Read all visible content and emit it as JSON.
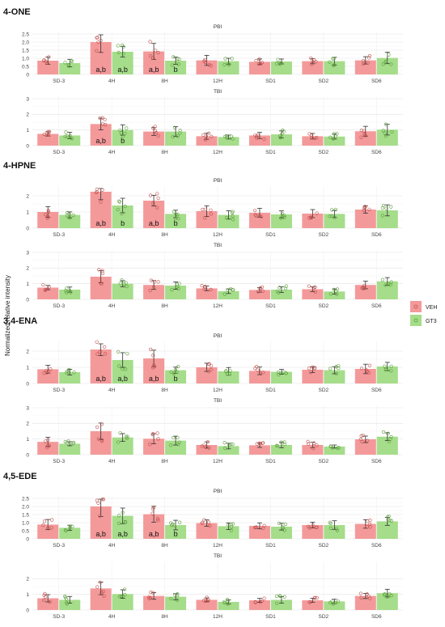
{
  "ylabel": "Normalized relative intensity",
  "legend": [
    {
      "name": "VEH",
      "color": "#f4999a"
    },
    {
      "name": "GT3",
      "color": "#a5dd8a"
    }
  ],
  "chart_data": {
    "type": "bar",
    "grid": true,
    "legend_position": "right",
    "categories": [
      "SD-3",
      "4H",
      "8H",
      "12H",
      "SD1",
      "SD2",
      "SD6"
    ],
    "series_names": [
      "VEH",
      "GT3"
    ],
    "groups": [
      {
        "title": "4-ONE",
        "panels": [
          {
            "title": "PBI",
            "ylim": [
              0,
              2.5
            ],
            "yticks": [
              "0",
              "0.5",
              "1.0",
              "1.5",
              "2.0",
              "2.5"
            ],
            "tick_values": [
              0,
              0.5,
              1.0,
              1.5,
              2.0,
              2.5
            ],
            "series": [
              {
                "name": "VEH",
                "values": [
                  0.85,
                  2.0,
                  1.42,
                  0.87,
                  0.78,
                  0.82,
                  0.87
                ]
              },
              {
                "name": "GT3",
                "values": [
                  0.7,
                  1.4,
                  0.85,
                  0.82,
                  0.8,
                  0.82,
                  1.02
                ]
              }
            ],
            "annotations": [
              {
                "category": "4H",
                "series": "VEH",
                "text": "a,b"
              },
              {
                "category": "4H",
                "series": "GT3",
                "text": "a,b"
              },
              {
                "category": "8H",
                "series": "VEH",
                "text": "a,b"
              },
              {
                "category": "8H",
                "series": "GT3",
                "text": "b"
              }
            ]
          },
          {
            "title": "TBI",
            "ylim": [
              0,
              3
            ],
            "yticks": [
              "0",
              "1",
              "2",
              "3"
            ],
            "tick_values": [
              0,
              1,
              2,
              3
            ],
            "series": [
              {
                "name": "VEH",
                "values": [
                  0.75,
                  1.38,
                  0.9,
                  0.6,
                  0.65,
                  0.6,
                  0.92
                ]
              },
              {
                "name": "GT3",
                "values": [
                  0.65,
                  1.0,
                  0.9,
                  0.55,
                  0.72,
                  0.58,
                  1.02
                ]
              }
            ],
            "annotations": [
              {
                "category": "4H",
                "series": "VEH",
                "text": "a,b"
              },
              {
                "category": "4H",
                "series": "GT3",
                "text": "b"
              }
            ]
          }
        ]
      },
      {
        "title": "4-HPNE",
        "panels": [
          {
            "title": "PBI",
            "ylim": [
              0,
              2.5
            ],
            "yticks": [
              "0",
              "1",
              "2"
            ],
            "tick_values": [
              0,
              1,
              2
            ],
            "series": [
              {
                "name": "VEH",
                "values": [
                  1.0,
                  2.25,
                  1.7,
                  1.05,
                  0.95,
                  0.9,
                  1.15
                ]
              },
              {
                "name": "GT3",
                "values": [
                  0.82,
                  1.4,
                  0.88,
                  0.82,
                  0.85,
                  0.88,
                  1.1
                ]
              }
            ],
            "annotations": [
              {
                "category": "4H",
                "series": "VEH",
                "text": "a,b"
              },
              {
                "category": "4H",
                "series": "GT3",
                "text": "b"
              },
              {
                "category": "8H",
                "series": "VEH",
                "text": "a,b"
              },
              {
                "category": "8H",
                "series": "GT3",
                "text": "b"
              }
            ]
          },
          {
            "title": "TBI",
            "ylim": [
              0,
              3
            ],
            "yticks": [
              "0",
              "1",
              "2",
              "3"
            ],
            "tick_values": [
              0,
              1,
              2,
              3
            ],
            "series": [
              {
                "name": "VEH",
                "values": [
                  0.75,
                  1.45,
                  0.92,
                  0.7,
                  0.6,
                  0.65,
                  0.92
                ]
              },
              {
                "name": "GT3",
                "values": [
                  0.62,
                  1.0,
                  0.88,
                  0.52,
                  0.62,
                  0.5,
                  1.15
                ]
              }
            ],
            "annotations": []
          }
        ]
      },
      {
        "title": "3,4-ENA",
        "panels": [
          {
            "title": "PBI",
            "ylim": [
              0,
              2.5
            ],
            "yticks": [
              "0",
              "1",
              "2"
            ],
            "tick_values": [
              0,
              1,
              2
            ],
            "series": [
              {
                "name": "VEH",
                "values": [
                  0.88,
                  2.1,
                  1.55,
                  1.0,
                  0.78,
                  0.85,
                  0.9
                ]
              },
              {
                "name": "GT3",
                "values": [
                  0.7,
                  1.45,
                  0.82,
                  0.75,
                  0.72,
                  0.82,
                  1.05
                ]
              }
            ],
            "annotations": [
              {
                "category": "4H",
                "series": "VEH",
                "text": "a,b"
              },
              {
                "category": "4H",
                "series": "GT3",
                "text": "a,b"
              },
              {
                "category": "8H",
                "series": "VEH",
                "text": "a,b"
              },
              {
                "category": "8H",
                "series": "GT3",
                "text": "b"
              }
            ]
          },
          {
            "title": "TBI",
            "ylim": [
              0,
              3
            ],
            "yticks": [
              "0",
              "1",
              "2",
              "3"
            ],
            "tick_values": [
              0,
              1,
              2,
              3
            ],
            "series": [
              {
                "name": "VEH",
                "values": [
                  0.82,
                  1.5,
                  1.02,
                  0.62,
                  0.6,
                  0.62,
                  0.98
                ]
              },
              {
                "name": "GT3",
                "values": [
                  0.7,
                  1.1,
                  0.9,
                  0.55,
                  0.62,
                  0.52,
                  1.15
                ]
              }
            ],
            "annotations": []
          }
        ]
      },
      {
        "title": "4,5-EDE",
        "panels": [
          {
            "title": "PBI",
            "ylim": [
              0,
              2.5
            ],
            "yticks": [
              "0",
              "0.5",
              "1.0",
              "1.5",
              "2.0",
              "2.5"
            ],
            "tick_values": [
              0,
              0.5,
              1.0,
              1.5,
              2.0,
              2.5
            ],
            "series": [
              {
                "name": "VEH",
                "values": [
                  0.88,
                  2.0,
                  1.52,
                  0.97,
                  0.8,
                  0.85,
                  0.92
                ]
              },
              {
                "name": "GT3",
                "values": [
                  0.68,
                  1.42,
                  0.85,
                  0.78,
                  0.75,
                  0.85,
                  1.08
                ]
              }
            ],
            "annotations": [
              {
                "category": "4H",
                "series": "VEH",
                "text": "a,b"
              },
              {
                "category": "4H",
                "series": "GT3",
                "text": "a,b"
              },
              {
                "category": "8H",
                "series": "VEH",
                "text": "a,b"
              },
              {
                "category": "8H",
                "series": "GT3",
                "text": "b"
              }
            ]
          },
          {
            "title": "TBI",
            "ylim": [
              0,
              3
            ],
            "yticks": [
              "0",
              "1",
              "2"
            ],
            "tick_values": [
              0,
              1,
              2
            ],
            "series": [
              {
                "name": "VEH",
                "values": [
                  0.75,
                  1.38,
                  0.9,
                  0.65,
                  0.62,
                  0.62,
                  0.9
                ]
              },
              {
                "name": "GT3",
                "values": [
                  0.65,
                  1.02,
                  0.85,
                  0.52,
                  0.65,
                  0.55,
                  1.08
                ]
              }
            ],
            "annotations": []
          }
        ]
      }
    ]
  }
}
